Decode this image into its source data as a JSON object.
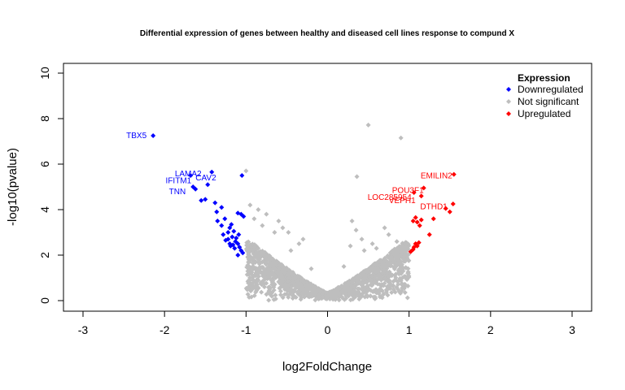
{
  "chart_data": {
    "type": "scatter",
    "title": "Differential expression of genes between healthy and diseased cell lines response to compund X",
    "xlabel": "log2FoldChange",
    "ylabel": "-log10(pvalue)",
    "xlim": [
      -3,
      3
    ],
    "ylim": [
      0,
      10
    ],
    "x_ticks": [
      -3,
      -2,
      -1,
      0,
      1,
      2,
      3
    ],
    "y_ticks": [
      0,
      2,
      4,
      6,
      8,
      10
    ],
    "grid": false,
    "legend": {
      "title": "Expression",
      "position": "top-right",
      "entries": [
        {
          "name": "Downregulated",
          "color": "#0000ff"
        },
        {
          "name": "Not significant",
          "color": "#bebebe"
        },
        {
          "name": "Upregulated",
          "color": "#ff0000"
        }
      ]
    },
    "colors": {
      "down": "#0000ff",
      "ns": "#bebebe",
      "up": "#ff0000"
    },
    "series": [
      {
        "name": "Downregulated",
        "points": [
          [
            -2.14,
            7.25
          ],
          [
            -1.68,
            5.5
          ],
          [
            -1.65,
            5.0
          ],
          [
            -1.62,
            4.9
          ],
          [
            -1.55,
            4.4
          ],
          [
            -1.5,
            4.45
          ],
          [
            -1.47,
            5.1
          ],
          [
            -1.42,
            5.65
          ],
          [
            -1.38,
            4.3
          ],
          [
            -1.36,
            3.9
          ],
          [
            -1.3,
            4.1
          ],
          [
            -1.35,
            3.5
          ],
          [
            -1.3,
            3.3
          ],
          [
            -1.26,
            3.6
          ],
          [
            -1.22,
            3.0
          ],
          [
            -1.2,
            3.2
          ],
          [
            -1.18,
            3.35
          ],
          [
            -1.17,
            2.8
          ],
          [
            -1.15,
            3.05
          ],
          [
            -1.13,
            2.6
          ],
          [
            -1.12,
            2.75
          ],
          [
            -1.1,
            2.5
          ],
          [
            -1.08,
            2.35
          ],
          [
            -1.06,
            2.2
          ],
          [
            -1.04,
            2.1
          ],
          [
            -1.2,
            2.5
          ],
          [
            -1.25,
            2.65
          ],
          [
            -1.28,
            2.9
          ],
          [
            -1.16,
            2.45
          ],
          [
            -1.14,
            2.3
          ],
          [
            -1.1,
            2.0
          ],
          [
            -1.06,
            3.8
          ],
          [
            -1.03,
            3.7
          ],
          [
            -1.1,
            3.85
          ],
          [
            -1.05,
            5.5
          ],
          [
            -1.09,
            2.9
          ],
          [
            -1.22,
            2.7
          ],
          [
            -1.19,
            2.4
          ]
        ]
      },
      {
        "name": "Upregulated",
        "points": [
          [
            1.55,
            5.55
          ],
          [
            1.54,
            4.25
          ],
          [
            1.5,
            3.9
          ],
          [
            1.45,
            4.05
          ],
          [
            1.3,
            3.6
          ],
          [
            1.25,
            2.9
          ],
          [
            1.18,
            4.95
          ],
          [
            1.15,
            4.6
          ],
          [
            1.13,
            3.3
          ],
          [
            1.1,
            3.45
          ],
          [
            1.08,
            3.65
          ],
          [
            1.06,
            4.75
          ],
          [
            1.05,
            3.5
          ],
          [
            1.1,
            2.4
          ],
          [
            1.08,
            2.5
          ],
          [
            1.06,
            2.35
          ],
          [
            1.05,
            2.25
          ],
          [
            1.12,
            2.55
          ],
          [
            1.02,
            2.15
          ],
          [
            1.15,
            3.55
          ]
        ]
      },
      {
        "name": "Not significant",
        "points": [
          [
            0.5,
            7.72
          ],
          [
            0.9,
            7.15
          ],
          [
            -1.0,
            5.7
          ],
          [
            0.36,
            5.45
          ],
          [
            -0.95,
            4.2
          ],
          [
            -0.85,
            4.0
          ],
          [
            -0.75,
            3.8
          ],
          [
            -0.6,
            3.5
          ],
          [
            -0.55,
            3.2
          ],
          [
            -0.48,
            3.0
          ],
          [
            -0.35,
            2.5
          ],
          [
            -0.3,
            2.7
          ],
          [
            0.3,
            3.5
          ],
          [
            0.35,
            3.1
          ],
          [
            0.42,
            2.7
          ],
          [
            0.28,
            2.4
          ],
          [
            0.7,
            3.2
          ],
          [
            0.75,
            2.9
          ],
          [
            0.85,
            2.6
          ],
          [
            0.92,
            2.4
          ],
          [
            -0.2,
            1.4
          ],
          [
            0.2,
            1.5
          ],
          [
            -0.9,
            3.6
          ],
          [
            -0.8,
            3.3
          ],
          [
            0.6,
            2.3
          ],
          [
            0.95,
            2.0
          ],
          [
            -0.65,
            3.0
          ],
          [
            0.55,
            2.5
          ],
          [
            -0.45,
            2.2
          ],
          [
            0.45,
            2.2
          ]
        ]
      }
    ],
    "annotations": [
      {
        "text": "TBX5",
        "x": -2.14,
        "y": 7.25,
        "series": "down"
      },
      {
        "text": "LAMA2",
        "x": -1.68,
        "y": 5.5,
        "series": "down"
      },
      {
        "text": "IFITM1",
        "x": -1.65,
        "y": 5.3,
        "series": "down"
      },
      {
        "text": "CAV2",
        "x": -1.42,
        "y": 5.5,
        "series": "down"
      },
      {
        "text": "TNN",
        "x": -1.62,
        "y": 4.9,
        "series": "down"
      },
      {
        "text": "EMILIN2",
        "x": 1.55,
        "y": 5.55,
        "series": "up"
      },
      {
        "text": "POU3F1",
        "x": 1.1,
        "y": 4.95,
        "series": "up"
      },
      {
        "text": "LOC285954",
        "x": 1.06,
        "y": 4.75,
        "series": "up"
      },
      {
        "text": "VEPH1",
        "x": 1.05,
        "y": 4.6,
        "series": "up"
      },
      {
        "text": "DTHD1",
        "x": 1.45,
        "y": 4.05,
        "series": "up"
      }
    ]
  }
}
